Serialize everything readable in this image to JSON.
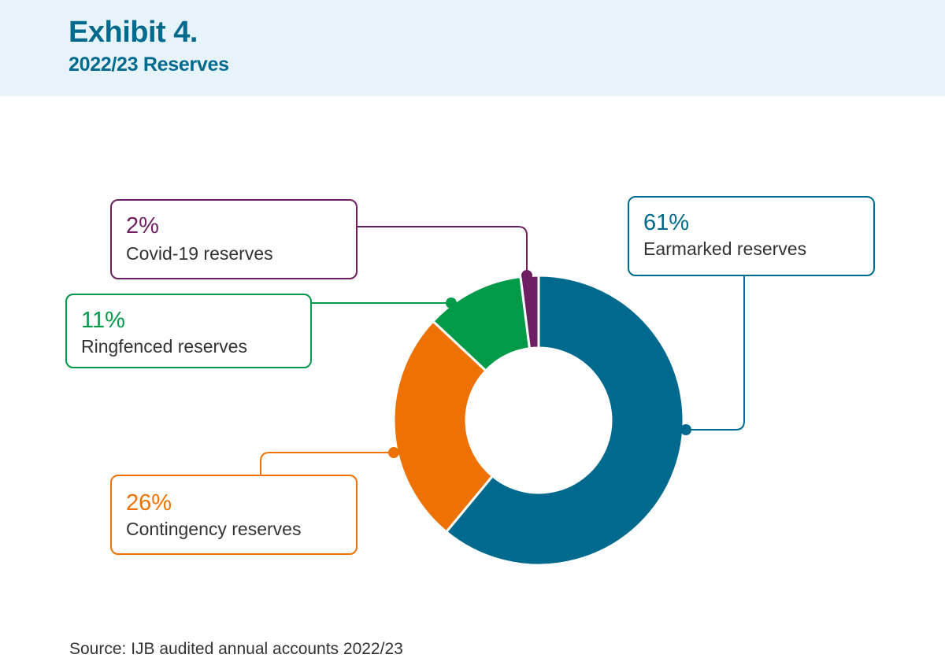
{
  "header": {
    "exhibit": "Exhibit 4.",
    "title": "2022/23 Reserves"
  },
  "chart_data": {
    "type": "pie",
    "variant": "donut",
    "title": "2022/23 Reserves",
    "slices": [
      {
        "label": "Earmarked reserves",
        "value": 61,
        "value_label": "61%",
        "color": "#006a8e"
      },
      {
        "label": "Contingency reserves",
        "value": 26,
        "value_label": "26%",
        "color": "#ee7203"
      },
      {
        "label": "Ringfenced reserves",
        "value": 11,
        "value_label": "11%",
        "color": "#009a49"
      },
      {
        "label": "Covid-19 reserves",
        "value": 2,
        "value_label": "2%",
        "color": "#6d1f62"
      }
    ]
  },
  "source": "Source: IJB audited annual accounts 2022/23"
}
